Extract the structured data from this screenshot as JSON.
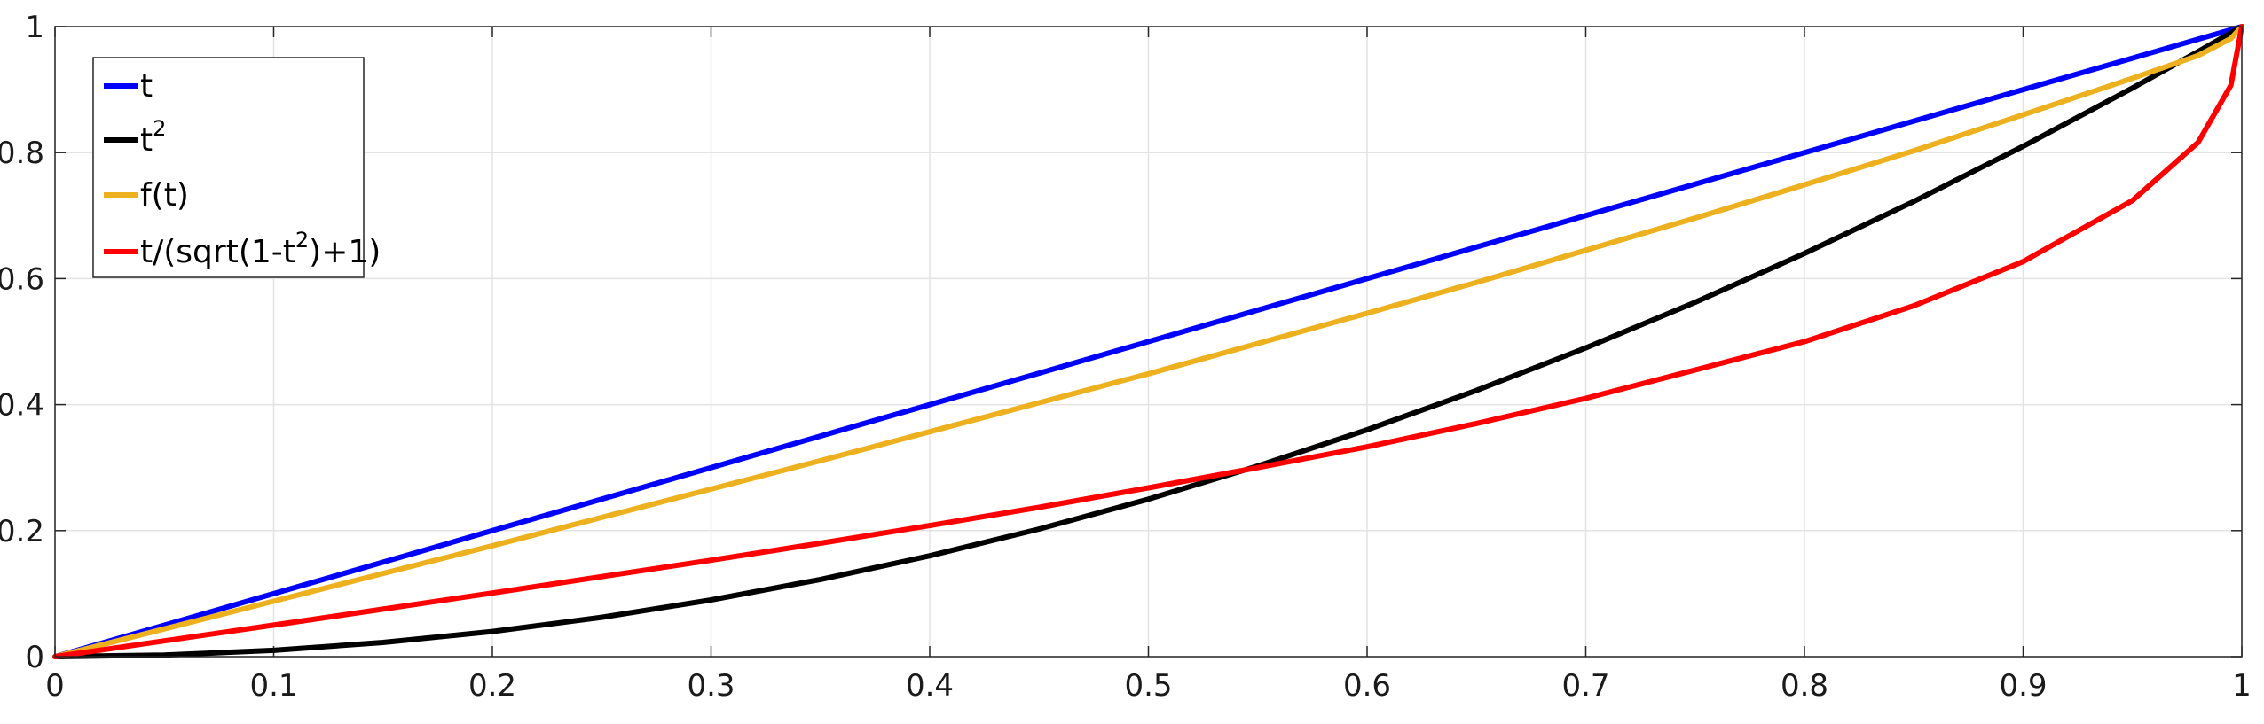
{
  "chart_data": {
    "type": "line",
    "title": "",
    "xlabel": "",
    "ylabel": "",
    "xlim": [
      0,
      1
    ],
    "ylim": [
      0,
      1
    ],
    "grid": true,
    "legend_position": "top-left",
    "x_ticks": [
      "0",
      "0.1",
      "0.2",
      "0.3",
      "0.4",
      "0.5",
      "0.6",
      "0.7",
      "0.8",
      "0.9",
      "1"
    ],
    "y_ticks": [
      "0",
      "0.2",
      "0.4",
      "0.6",
      "0.8",
      "1"
    ],
    "x": [
      0,
      0.05,
      0.1,
      0.15,
      0.2,
      0.25,
      0.3,
      0.35,
      0.4,
      0.45,
      0.5,
      0.55,
      0.6,
      0.65,
      0.7,
      0.75,
      0.8,
      0.85,
      0.9,
      0.95,
      0.98,
      0.995,
      1
    ],
    "series": [
      {
        "name": "t",
        "legend_base": "t",
        "legend_sup": "",
        "legend_tail": "",
        "color": "#0000ff",
        "values": [
          0,
          0.05,
          0.1,
          0.15,
          0.2,
          0.25,
          0.3,
          0.35,
          0.4,
          0.45,
          0.5,
          0.55,
          0.6,
          0.65,
          0.7,
          0.75,
          0.8,
          0.85,
          0.9,
          0.95,
          0.98,
          0.995,
          1
        ]
      },
      {
        "name": "t2",
        "legend_base": "t",
        "legend_sup": "2",
        "legend_tail": "",
        "color": "#000000",
        "values": [
          0,
          0.0025,
          0.01,
          0.0225,
          0.04,
          0.0625,
          0.09,
          0.1225,
          0.16,
          0.2025,
          0.25,
          0.3025,
          0.36,
          0.4225,
          0.49,
          0.5625,
          0.64,
          0.7225,
          0.81,
          0.9025,
          0.9604,
          0.99,
          1
        ]
      },
      {
        "name": "f(t)",
        "legend_base": "f(t)",
        "legend_sup": "",
        "legend_tail": "",
        "color": "#edb120",
        "values": [
          0,
          0.044,
          0.088,
          0.132,
          0.176,
          0.221,
          0.266,
          0.311,
          0.357,
          0.403,
          0.449,
          0.497,
          0.545,
          0.594,
          0.645,
          0.696,
          0.749,
          0.803,
          0.86,
          0.918,
          0.954,
          0.981,
          1
        ]
      },
      {
        "name": "t/(sqrt(1-t2)+1)",
        "legend_base": "t/(sqrt(1-t",
        "legend_sup": "2",
        "legend_tail": ")+1)",
        "color": "#ff0000",
        "values": [
          0,
          0.025,
          0.0501,
          0.0754,
          0.101,
          0.127,
          0.153,
          0.18,
          0.208,
          0.237,
          0.268,
          0.3,
          0.333,
          0.37,
          0.41,
          0.455,
          0.5,
          0.557,
          0.627,
          0.724,
          0.816,
          0.907,
          1
        ]
      }
    ]
  }
}
